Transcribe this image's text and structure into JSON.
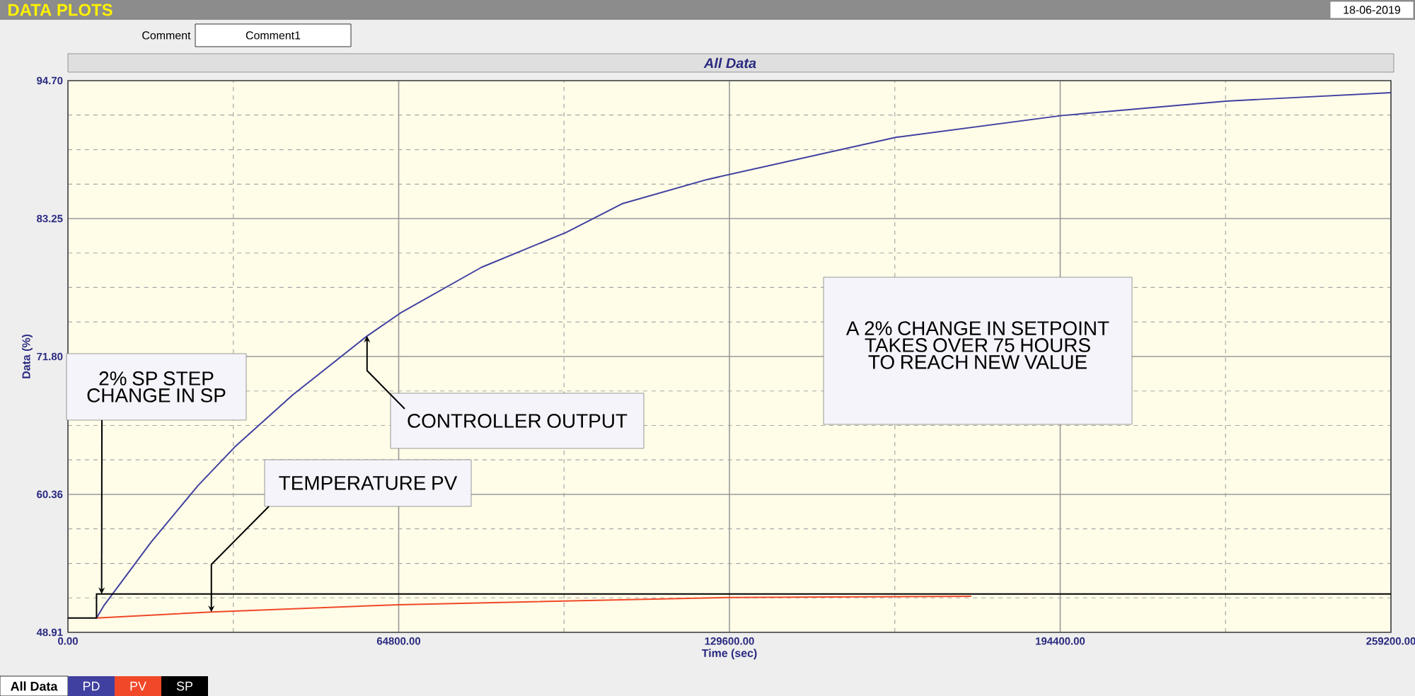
{
  "chart_data": {
    "type": "line",
    "title": "All Data",
    "xlabel": "Time (sec)",
    "ylabel": "Data (%)",
    "xlim": [
      0,
      259200
    ],
    "ylim": [
      48.91,
      94.7
    ],
    "xticks": [
      {
        "value": 0,
        "label": "0.00"
      },
      {
        "value": 32400,
        "label": null
      },
      {
        "value": 64800,
        "label": "64800.00"
      },
      {
        "value": 97200,
        "label": null
      },
      {
        "value": 129600,
        "label": "129600.00"
      },
      {
        "value": 162000,
        "label": null
      },
      {
        "value": 194400,
        "label": "194400.00"
      },
      {
        "value": 226800,
        "label": null
      },
      {
        "value": 259200,
        "label": "259200.00"
      }
    ],
    "yticks": [
      {
        "value": 48.91,
        "label": "48.91"
      },
      {
        "value": 51.77,
        "label": null
      },
      {
        "value": 54.63,
        "label": null
      },
      {
        "value": 57.5,
        "label": null
      },
      {
        "value": 60.36,
        "label": "60.36"
      },
      {
        "value": 63.22,
        "label": null
      },
      {
        "value": 66.08,
        "label": null
      },
      {
        "value": 68.94,
        "label": null
      },
      {
        "value": 71.8,
        "label": "71.80"
      },
      {
        "value": 74.67,
        "label": null
      },
      {
        "value": 77.53,
        "label": null
      },
      {
        "value": 80.39,
        "label": null
      },
      {
        "value": 83.25,
        "label": "83.25"
      },
      {
        "value": 86.11,
        "label": null
      },
      {
        "value": 88.97,
        "label": null
      },
      {
        "value": 91.84,
        "label": null
      },
      {
        "value": 94.7,
        "label": "94.70"
      }
    ],
    "grid": true,
    "legend": "bottom left",
    "line_style": "solid",
    "series": [
      {
        "name": "PD",
        "color": "#4040a0",
        "x": [
          5600,
          7000,
          16300,
          25500,
          32700,
          44000,
          58600,
          65100,
          81000,
          97600,
          108700,
          125300,
          162300,
          194700,
          226900,
          259200
        ],
        "values": [
          50.1,
          51.1,
          56.4,
          61.1,
          64.3,
          68.6,
          73.5,
          75.4,
          79.2,
          82.1,
          84.5,
          86.5,
          90.0,
          91.8,
          93.0,
          93.7
        ]
      },
      {
        "name": "PV",
        "color": "#f04828",
        "x": [
          5600,
          28100,
          64800,
          129600,
          177000
        ],
        "values": [
          50.1,
          50.6,
          51.2,
          51.8,
          51.9
        ]
      },
      {
        "name": "SP",
        "color": "#000000",
        "type": "step",
        "x": [
          0,
          5600,
          259200
        ],
        "values": [
          50.1,
          52.1,
          52.1
        ]
      }
    ],
    "annotations": [
      "DATA PLOTS",
      "Comment",
      "Comment1",
      "18-06-2019",
      "All Data",
      {
        "text": "2% SP STEP CHANGE IN SP",
        "x": 6600,
        "y": 52.1
      },
      {
        "text": "CONTROLLER OUTPUT",
        "x": 58600,
        "y": 73.5
      },
      {
        "text": "TEMPERATURE PV",
        "x": 28100,
        "y": 50.6
      },
      "A 2% CHANGE IN SETPOINT TAKES OVER 75 HOURS TO REACH NEW VALUE"
    ]
  }
}
